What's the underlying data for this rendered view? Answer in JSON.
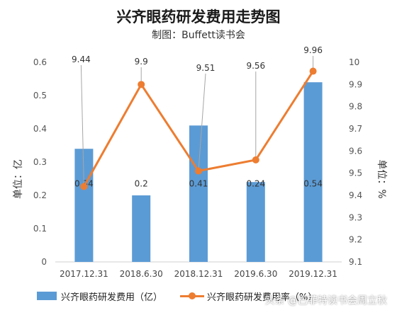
{
  "title": "兴齐眼药研发费用走势图",
  "subtitle": "制图：Buffett读书会",
  "watermark": "头条 @巴菲特读书会周立秋",
  "colors": {
    "bar": "#5b9bd5",
    "line": "#ed7d31"
  },
  "chart_data": {
    "type": "bar+line",
    "categories": [
      "2017.12.31",
      "2018.6.30",
      "2018.12.31",
      "2019.6.30",
      "2019.12.31"
    ],
    "series": [
      {
        "name": "兴齐眼药研发费用（亿）",
        "type": "bar",
        "axis": "left",
        "values": [
          0.34,
          0.2,
          0.41,
          0.24,
          0.54
        ],
        "labels": [
          "0.34",
          "0.2",
          "0.41",
          "0.24",
          "0.54"
        ]
      },
      {
        "name": "兴齐眼药研发费用率（%）",
        "type": "line",
        "axis": "right",
        "values": [
          9.44,
          9.9,
          9.51,
          9.56,
          9.96
        ],
        "labels": [
          "9.44",
          "9.9",
          "9.51",
          "9.56",
          "9.96"
        ]
      }
    ],
    "yleft": {
      "label": "单位：亿",
      "min": 0,
      "max": 0.6,
      "ticks": [
        "0",
        "0.1",
        "0.2",
        "0.3",
        "0.4",
        "0.5",
        "0.6"
      ]
    },
    "yright": {
      "label": "单位：%",
      "min": 9.1,
      "max": 10,
      "ticks": [
        "9.1",
        "9.2",
        "9.3",
        "9.4",
        "9.5",
        "9.6",
        "9.7",
        "9.8",
        "9.9",
        "10"
      ]
    },
    "grid": false,
    "legend": "bottom"
  }
}
